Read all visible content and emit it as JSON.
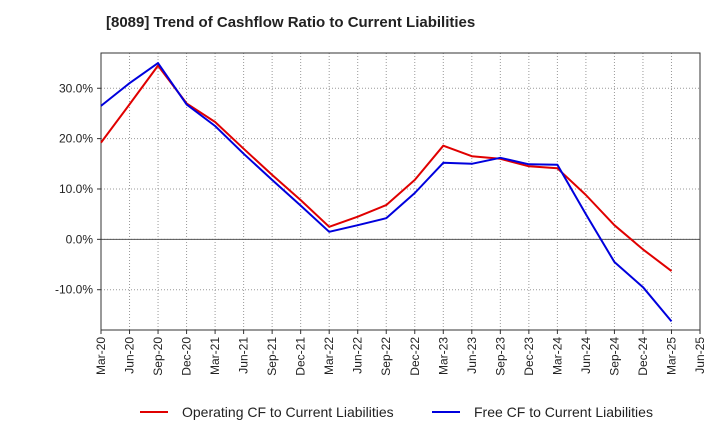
{
  "chart_data": {
    "type": "line",
    "title": "[8089]  Trend of Cashflow Ratio to Current Liabilities",
    "xlabel": "",
    "ylabel": "",
    "x": [
      "Mar-20",
      "Jun-20",
      "Sep-20",
      "Dec-20",
      "Mar-21",
      "Jun-21",
      "Sep-21",
      "Dec-21",
      "Mar-22",
      "Jun-22",
      "Sep-22",
      "Dec-22",
      "Mar-23",
      "Jun-23",
      "Sep-23",
      "Dec-23",
      "Mar-24",
      "Jun-24",
      "Sep-24",
      "Dec-24",
      "Mar-25",
      "Jun-25"
    ],
    "ylim": [
      -18,
      37
    ],
    "yticks": [
      30,
      20,
      10,
      0,
      -10
    ],
    "ytick_labels": [
      "30.0%",
      "20.0%",
      "10.0%",
      "0.0%",
      "-10.0%"
    ],
    "grid": true,
    "legend_position": "bottom",
    "series": [
      {
        "name": "Operating CF to Current Liabilities",
        "color": "#e00000",
        "values": [
          19.2,
          26.8,
          34.5,
          27.0,
          23.3,
          18.0,
          12.8,
          7.8,
          2.5,
          4.5,
          6.8,
          11.8,
          18.6,
          16.5,
          16.0,
          14.5,
          14.1,
          8.8,
          2.8,
          -2.0,
          -6.3,
          null
        ]
      },
      {
        "name": "Free CF to Current Liabilities",
        "color": "#0000dd",
        "values": [
          26.5,
          31.0,
          35.0,
          26.8,
          22.5,
          17.0,
          11.8,
          6.7,
          1.5,
          2.8,
          4.2,
          9.2,
          15.2,
          15.0,
          16.2,
          14.9,
          14.8,
          5.0,
          -4.5,
          -9.5,
          -16.3,
          null
        ]
      }
    ]
  }
}
